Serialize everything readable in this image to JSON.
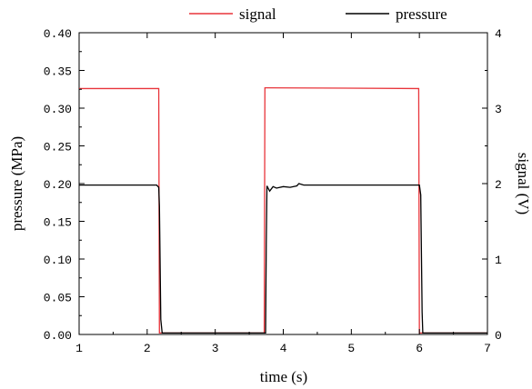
{
  "chart_data": {
    "type": "line",
    "xlabel": "time (s)",
    "ylabel_left": "pressure (MPa)",
    "ylabel_right": "signal (V)",
    "xlim": [
      1,
      7
    ],
    "ylim_left": [
      0,
      0.4
    ],
    "ylim_right": [
      0,
      4
    ],
    "x_ticks": [
      "1",
      "2",
      "3",
      "4",
      "5",
      "6",
      "7"
    ],
    "y_left_ticks": [
      "0.00",
      "0.05",
      "0.10",
      "0.15",
      "0.20",
      "0.25",
      "0.30",
      "0.35",
      "0.40"
    ],
    "y_right_ticks": [
      "0",
      "1",
      "2",
      "3",
      "4"
    ],
    "grid": false,
    "legend_position": "top",
    "series": [
      {
        "name": "signal",
        "axis": "right",
        "color": "#e8343a",
        "x": [
          1.0,
          2.16,
          2.17,
          2.18,
          3.72,
          3.73,
          3.74,
          5.98,
          5.99,
          6.0,
          7.0
        ],
        "y": [
          3.26,
          3.26,
          3.26,
          0.02,
          0.02,
          3.27,
          3.27,
          3.26,
          3.26,
          0.02,
          0.02
        ]
      },
      {
        "name": "pressure",
        "axis": "left",
        "color": "#000000",
        "x": [
          1.0,
          2.14,
          2.17,
          2.18,
          2.2,
          2.22,
          3.74,
          3.75,
          3.76,
          3.8,
          3.85,
          3.9,
          4.0,
          4.1,
          4.2,
          4.23,
          4.3,
          6.0,
          6.02,
          6.04,
          6.05,
          7.0
        ],
        "y": [
          0.198,
          0.198,
          0.195,
          0.17,
          0.02,
          0.002,
          0.002,
          0.12,
          0.197,
          0.19,
          0.196,
          0.194,
          0.196,
          0.195,
          0.197,
          0.2,
          0.198,
          0.198,
          0.185,
          0.03,
          0.002,
          0.002
        ]
      }
    ]
  }
}
